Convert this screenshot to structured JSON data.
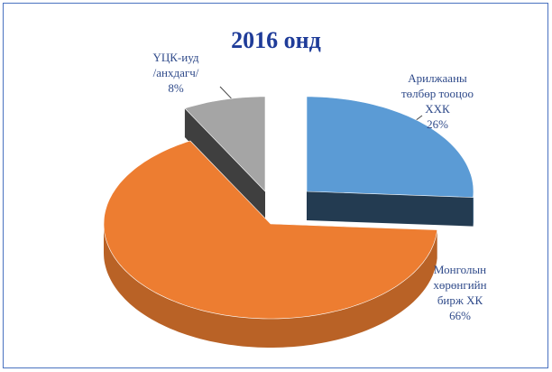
{
  "chart_data": {
    "type": "pie",
    "title": "2016 онд",
    "categories": [
      "Арилжааны\nтөлбөр тооцоо\nХХК",
      "Монголын\nхөрөнгийн\nбирж ХК",
      "ҮЦК-иуд\n/анхдагч/"
    ],
    "values": [
      26,
      66,
      8
    ],
    "value_labels": [
      "26%",
      "66%",
      "8%"
    ],
    "colors": [
      "#5b9bd5",
      "#ed7d31",
      "#a5a5a5"
    ]
  }
}
